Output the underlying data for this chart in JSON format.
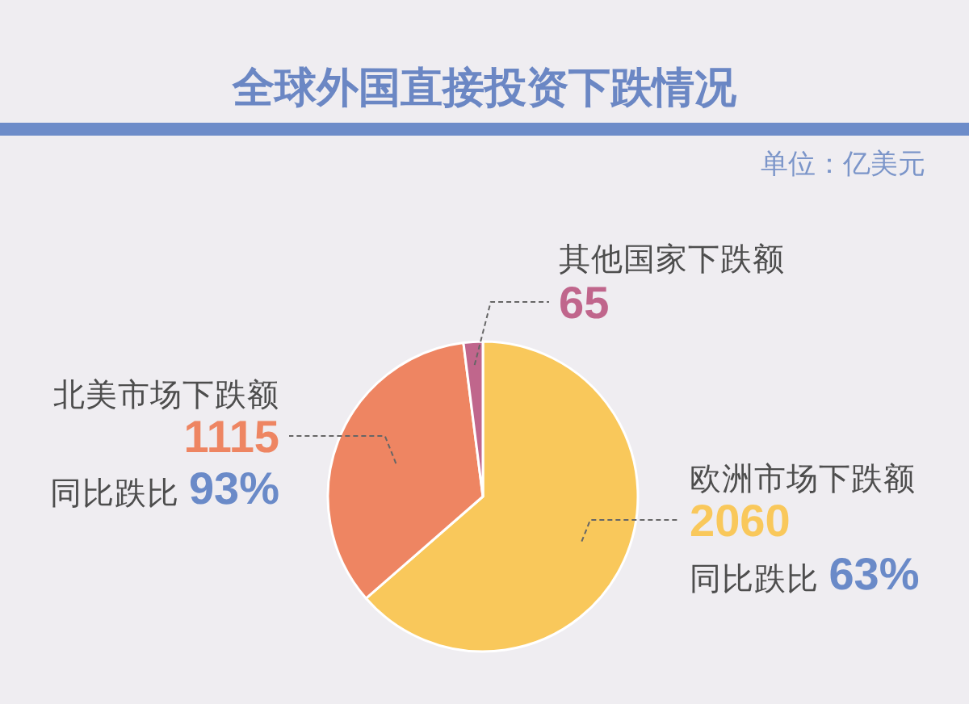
{
  "chart_data": {
    "type": "pie",
    "title": "全球外国直接投资下跌情况",
    "subtitle": "单位：亿美元",
    "categories": [
      "欧洲市场下跌额",
      "北美市场下跌额",
      "其他国家下跌额"
    ],
    "values": [
      2060,
      1115,
      65
    ],
    "colors": [
      "#f9c85b",
      "#ee8562",
      "#c0668c"
    ],
    "data_labels": true,
    "annotations": [
      {
        "text": "同比跌比 63%",
        "x": "欧洲市场下跌额"
      },
      {
        "text": "同比跌比 93%",
        "x": "北美市场下跌额"
      }
    ]
  }
}
